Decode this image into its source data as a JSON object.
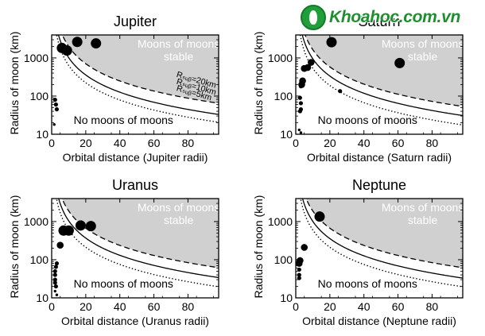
{
  "watermark": {
    "text": "Khoahoc.com.vn",
    "logo": "leaf-logo-icon"
  },
  "colors": {
    "stable_region": "#d0d0d0",
    "curve": "#000000",
    "point": "#000000"
  },
  "chart_data": [
    {
      "type": "scatter",
      "title": "Jupiter",
      "xlabel": "Orbital distance (Jupiter radii)",
      "ylabel": "Radius of moon (km)",
      "xlim": [
        0,
        98
      ],
      "ylim": [
        10,
        4000
      ],
      "y_scale": "log",
      "x_ticks": [
        0,
        20,
        40,
        60,
        80
      ],
      "y_ticks": [
        10,
        100,
        1000
      ],
      "stable_label": [
        "Moons of moons",
        "stable"
      ],
      "unstable_label": "No moons of moons",
      "curve_labels": [
        "Rₛᵤᵦ=20km",
        "Rₛᵤᵦ=10km",
        "Rₛᵤᵦ=5km"
      ],
      "curves": [
        {
          "name": "20km",
          "style": "dashed",
          "K": 63000
        },
        {
          "name": "10km",
          "style": "solid",
          "K": 32000
        },
        {
          "name": "5km",
          "style": "dotted",
          "K": 20000
        }
      ],
      "points": [
        {
          "x": 6,
          "y": 1820,
          "size": "large"
        },
        {
          "x": 9,
          "y": 1560,
          "size": "large"
        },
        {
          "x": 15,
          "y": 2630,
          "size": "large"
        },
        {
          "x": 26,
          "y": 2410,
          "size": "large"
        },
        {
          "x": 2,
          "y": 80,
          "size": "small"
        },
        {
          "x": 2.5,
          "y": 60,
          "size": "small"
        },
        {
          "x": 3,
          "y": 45,
          "size": "small"
        },
        {
          "x": 1.5,
          "y": 18,
          "size": "tiny"
        }
      ]
    },
    {
      "type": "scatter",
      "title": "Saturn",
      "xlabel": "Orbital distance (Saturn radii)",
      "ylabel": "Radius of moon (km)",
      "xlim": [
        0,
        98
      ],
      "ylim": [
        10,
        4000
      ],
      "y_scale": "log",
      "x_ticks": [
        0,
        20,
        40,
        60,
        80
      ],
      "y_ticks": [
        10,
        100,
        1000
      ],
      "stable_label": [
        "Moons of moons",
        "stable"
      ],
      "unstable_label": "No moons of moons",
      "curve_labels": [],
      "curves": [
        {
          "name": "20km",
          "style": "dashed",
          "K": 52000
        },
        {
          "name": "10km",
          "style": "solid",
          "K": 30000
        },
        {
          "name": "5km",
          "style": "dotted",
          "K": 17000
        }
      ],
      "points": [
        {
          "x": 21,
          "y": 2580,
          "size": "large"
        },
        {
          "x": 61,
          "y": 735,
          "size": "large"
        },
        {
          "x": 9,
          "y": 765,
          "size": "medium"
        },
        {
          "x": 7,
          "y": 560,
          "size": "medium"
        },
        {
          "x": 5,
          "y": 530,
          "size": "medium"
        },
        {
          "x": 4,
          "y": 250,
          "size": "medium"
        },
        {
          "x": 3.5,
          "y": 200,
          "size": "medium"
        },
        {
          "x": 3,
          "y": 180,
          "size": "small"
        },
        {
          "x": 2.5,
          "y": 90,
          "size": "small"
        },
        {
          "x": 3,
          "y": 65,
          "size": "small"
        },
        {
          "x": 3,
          "y": 45,
          "size": "small"
        },
        {
          "x": 2.5,
          "y": 40,
          "size": "small"
        },
        {
          "x": 26,
          "y": 135,
          "size": "small"
        },
        {
          "x": 2,
          "y": 13,
          "size": "tiny"
        },
        {
          "x": 3,
          "y": 11,
          "size": "tiny"
        }
      ]
    },
    {
      "type": "scatter",
      "title": "Uranus",
      "xlabel": "Orbital distance (Uranus radii)",
      "ylabel": "Radius of moon (km)",
      "xlim": [
        0,
        98
      ],
      "ylim": [
        10,
        4000
      ],
      "y_scale": "log",
      "x_ticks": [
        0,
        20,
        40,
        60,
        80
      ],
      "y_ticks": [
        10,
        100,
        1000
      ],
      "stable_label": [
        "Moons of moons",
        "stable"
      ],
      "unstable_label": "No moons of moons",
      "curve_labels": [],
      "curves": [
        {
          "name": "20km",
          "style": "dashed",
          "K": 60000
        },
        {
          "name": "10km",
          "style": "solid",
          "K": 33000
        },
        {
          "name": "5km",
          "style": "dotted",
          "K": 19000
        }
      ],
      "points": [
        {
          "x": 23,
          "y": 760,
          "size": "large"
        },
        {
          "x": 17,
          "y": 790,
          "size": "large"
        },
        {
          "x": 10,
          "y": 580,
          "size": "large"
        },
        {
          "x": 7,
          "y": 580,
          "size": "large"
        },
        {
          "x": 5,
          "y": 240,
          "size": "medium"
        },
        {
          "x": 3,
          "y": 80,
          "size": "small"
        },
        {
          "x": 2.5,
          "y": 65,
          "size": "small"
        },
        {
          "x": 2,
          "y": 50,
          "size": "small"
        },
        {
          "x": 2,
          "y": 40,
          "size": "small"
        },
        {
          "x": 2,
          "y": 30,
          "size": "small"
        },
        {
          "x": 2,
          "y": 25,
          "size": "small"
        },
        {
          "x": 2.5,
          "y": 20,
          "size": "small"
        },
        {
          "x": 2,
          "y": 15,
          "size": "tiny"
        },
        {
          "x": 3,
          "y": 12,
          "size": "tiny"
        }
      ]
    },
    {
      "type": "scatter",
      "title": "Neptune",
      "xlabel": "Orbital distance (Neptune radii)",
      "ylabel": "Radius of moon (km)",
      "xlim": [
        0,
        98
      ],
      "ylim": [
        10,
        4000
      ],
      "y_scale": "log",
      "x_ticks": [
        0,
        20,
        40,
        60,
        80
      ],
      "y_ticks": [
        10,
        100,
        1000
      ],
      "stable_label": [
        "Moons of moons",
        "stable"
      ],
      "unstable_label": "No moons of moons",
      "curve_labels": [],
      "curves": [
        {
          "name": "20km",
          "style": "dashed",
          "K": 60000
        },
        {
          "name": "10km",
          "style": "solid",
          "K": 32000
        },
        {
          "name": "5km",
          "style": "dotted",
          "K": 19000
        }
      ],
      "points": [
        {
          "x": 14,
          "y": 1350,
          "size": "large"
        },
        {
          "x": 5,
          "y": 210,
          "size": "medium"
        },
        {
          "x": 2.5,
          "y": 95,
          "size": "medium"
        },
        {
          "x": 2,
          "y": 80,
          "size": "medium"
        },
        {
          "x": 2,
          "y": 55,
          "size": "small"
        },
        {
          "x": 2,
          "y": 40,
          "size": "small"
        },
        {
          "x": 2,
          "y": 33,
          "size": "small"
        }
      ]
    }
  ]
}
